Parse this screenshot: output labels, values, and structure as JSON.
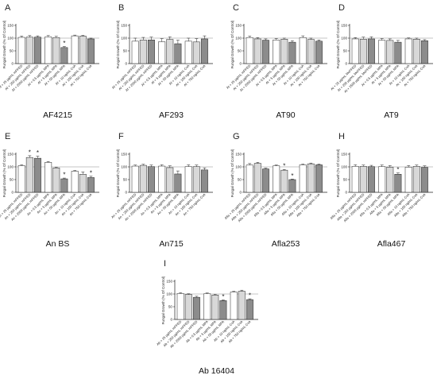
{
  "colors": {
    "white_bar": "#ffffff",
    "light_bar": "#d8d8d8",
    "dark_bar": "#8c8c8c",
    "axis": "#222222",
    "reference_line": "#8a8a8a"
  },
  "chart_data": [
    {
      "panel": "A",
      "title": "AF4215",
      "type": "bar",
      "ylabel": "Fungal Growth (% Of Control)",
      "ylim": [
        0,
        150
      ],
      "yticks": [
        0,
        50,
        100,
        150
      ],
      "reference_line": 100,
      "categories": [
        "Af + 25 µg/mL mPPED",
        "Af + 250 µg/mL mPPED",
        "Af + 2500 µg/mL mPPED",
        "Af + 0.5 µg/mL MPA",
        "Af + 5 µg/mL MPA",
        "Af + 50 µg/mL MPA",
        "Af + 10 ng/mL CsA",
        "Af + 100 ng/mL CsA",
        "Af + 750 ng/mL CsA"
      ],
      "values": [
        103,
        104,
        104,
        105,
        102,
        63,
        109,
        108,
        97
      ],
      "errors": [
        5,
        6,
        5,
        5,
        5,
        4,
        3,
        3,
        3
      ],
      "significant": [
        5
      ]
    },
    {
      "panel": "B",
      "title": "AF293",
      "type": "bar",
      "ylabel": "Fungal Growth (% Of Control)",
      "ylim": [
        0,
        150
      ],
      "yticks": [
        0,
        50,
        100,
        150
      ],
      "reference_line": 100,
      "categories": [
        "Af + 25 µg/mL mPPED",
        "Af + 250 µg/mL mPPED",
        "Af + 2500 µg/mL mPPED",
        "Af + 0.5 µg/mL MPA",
        "Af + 5 µg/mL MPA",
        "Af + 50 µg/mL MPA",
        "Af + 10 ng/mL CsA",
        "Af + 100 ng/mL CsA",
        "Af + 750 ng/mL CsA"
      ],
      "values": [
        88,
        93,
        93,
        86,
        95,
        78,
        88,
        85,
        97
      ],
      "errors": [
        12,
        10,
        11,
        12,
        10,
        14,
        12,
        13,
        12
      ],
      "significant": []
    },
    {
      "panel": "C",
      "title": "AT90",
      "type": "bar",
      "ylabel": "Fungal Growth (% Of Control)",
      "ylim": [
        0,
        150
      ],
      "yticks": [
        0,
        50,
        100,
        150
      ],
      "reference_line": 100,
      "categories": [
        "At + 25 µg/mL mPPED",
        "At + 250 µg/mL mPPED",
        "At + 2500 µg/mL mPPED",
        "At + 0.5 µg/mL MPA",
        "At + 5 µg/mL MPA",
        "At + 50 µg/mL MPA",
        "At + 10 ng/mL CsA",
        "At + 100 ng/mL CsA",
        "At + 750 ng/mL CsA"
      ],
      "values": [
        102,
        97,
        92,
        93,
        96,
        84,
        102,
        95,
        88
      ],
      "errors": [
        6,
        5,
        5,
        5,
        4,
        6,
        7,
        5,
        5
      ],
      "significant": []
    },
    {
      "panel": "D",
      "title": "AT9",
      "type": "bar",
      "ylabel": "Fungal Growth (% Of Control)",
      "ylim": [
        0,
        150
      ],
      "yticks": [
        0,
        50,
        100,
        150
      ],
      "reference_line": 100,
      "categories": [
        "At + 25 µg/mL MePPED",
        "At + 250 µg/mL MePPED",
        "At + 2500 µg/mL MePPED",
        "At + 0.5 µg/mL MPA",
        "At + 5 µg/mL MPA",
        "At + 50 µg/mL MPA",
        "At + 10 ng/mL CsA",
        "At + 100 ng/mL CsA",
        "At + 750 ng/mL CsA"
      ],
      "values": [
        97,
        96,
        97,
        92,
        91,
        84,
        97,
        96,
        90
      ],
      "errors": [
        5,
        8,
        8,
        6,
        6,
        7,
        4,
        4,
        4
      ],
      "significant": []
    },
    {
      "panel": "E",
      "title": "An BS",
      "type": "bar",
      "ylabel": "Fungal Growth (% Of Control)",
      "ylim": [
        0,
        150
      ],
      "yticks": [
        0,
        50,
        100,
        150
      ],
      "reference_line": 100,
      "categories": [
        "An + 25 µg/mL mPPED",
        "An + 250 µg/mL mPPED",
        "An + 2500 µg/mL mPPED",
        "An + 0.5 µg/mL MPA",
        "An + 5 µg/mL MPA",
        "An + 50 µg/mL MPA",
        "An + 10 ng/mL CsA",
        "An + 100 ng/mL CsA",
        "An + 750 ng/mL CsA"
      ],
      "values": [
        105,
        137,
        134,
        118,
        96,
        53,
        83,
        71,
        58
      ],
      "errors": [
        3,
        7,
        8,
        3,
        3,
        3,
        3,
        9,
        5
      ],
      "significant": [
        1,
        2,
        5,
        8
      ]
    },
    {
      "panel": "F",
      "title": "An715",
      "type": "bar",
      "ylabel": "Fungal Growth (% Of Control)",
      "ylim": [
        0,
        150
      ],
      "yticks": [
        0,
        50,
        100,
        150
      ],
      "reference_line": 100,
      "categories": [
        "An + 25 µg/mL mPPED",
        "An + 250 µg/mL mPPED",
        "An + 2500 µg/mL mPPED",
        "An + 0.5 µg/mL MPA",
        "An + 5 µg/mL MPA",
        "An + 50 µg/mL MPA",
        "An + 10 ng/mL CsA",
        "An + 100 ng/mL CsA",
        "An + 750 ng/mL CsA"
      ],
      "values": [
        103,
        106,
        101,
        103,
        97,
        72,
        101,
        101,
        88
      ],
      "errors": [
        4,
        4,
        6,
        5,
        7,
        12,
        7,
        6,
        8
      ],
      "significant": []
    },
    {
      "panel": "G",
      "title": "Afla253",
      "type": "bar",
      "ylabel": "Fungal Growth (% Of Control)",
      "ylim": [
        0,
        150
      ],
      "yticks": [
        0,
        50,
        100,
        150
      ],
      "reference_line": 100,
      "categories": [
        "Afla + 25 µg/mL mPPED",
        "Afla + 250 µg/mL mPPED",
        "Afla + 2500 µg/mL mPPED",
        "Afla + 0.5 µg/mL MPA",
        "Afla + 5 µg/mL MPA",
        "Afla + 50 µg/mL MPA",
        "Afla + 10 ng/mL CsA",
        "Afla + 100 ng/mL CsA",
        "Afla + 750 ng/mL CsA"
      ],
      "values": [
        107,
        114,
        92,
        104,
        87,
        50,
        108,
        112,
        108
      ],
      "errors": [
        6,
        4,
        3,
        3,
        3,
        2,
        3,
        3,
        3
      ],
      "significant": [
        4,
        5
      ]
    },
    {
      "panel": "H",
      "title": "Afla467",
      "type": "bar",
      "ylabel": "Fungal Growth (% Of Control)",
      "ylim": [
        0,
        150
      ],
      "yticks": [
        0,
        50,
        100,
        150
      ],
      "reference_line": 100,
      "categories": [
        "Afla + 25 µg/mL mPPED",
        "Afla + 250 µg/mL mPPED",
        "Afla + 2500 µg/mL mPPED",
        "Afla + 0.5 µg/mL MPA",
        "Afla + 5 µg/mL MPA",
        "Afla + 50 µg/mL MPA",
        "Afla + 10 ng/mL CsA",
        "Afla + 100 ng/mL CsA",
        "Afla + 750 ng/mL CsA"
      ],
      "values": [
        102,
        102,
        101,
        101,
        99,
        71,
        99,
        102,
        98
      ],
      "errors": [
        6,
        5,
        5,
        6,
        6,
        5,
        6,
        5,
        6
      ],
      "significant": [
        5
      ]
    },
    {
      "panel": "I",
      "title": "Ab 16404",
      "type": "bar",
      "ylabel": "Fungal Growth (% Of Control)",
      "ylim": [
        0,
        150
      ],
      "yticks": [
        0,
        50,
        100,
        150
      ],
      "reference_line": 100,
      "categories": [
        "Ab + 25 µg/mL mPPED",
        "Ab + 250 µg/mL mPPED",
        "Ab + 2500 µg/mL mPPED",
        "Ab + 0.5 µg/mL MPA",
        "Ab + 5 µg/mL MPA",
        "Ab + 50 µg/mL MPA",
        "Ab + 10 ng/mL CsA",
        "Ab + 100 ng/mL CsA",
        "Ab + 750 ng/mL CsA"
      ],
      "values": [
        102,
        98,
        87,
        101,
        96,
        74,
        108,
        111,
        78
      ],
      "errors": [
        3,
        3,
        4,
        3,
        3,
        3,
        3,
        4,
        3
      ],
      "significant": [
        5,
        8
      ]
    }
  ]
}
